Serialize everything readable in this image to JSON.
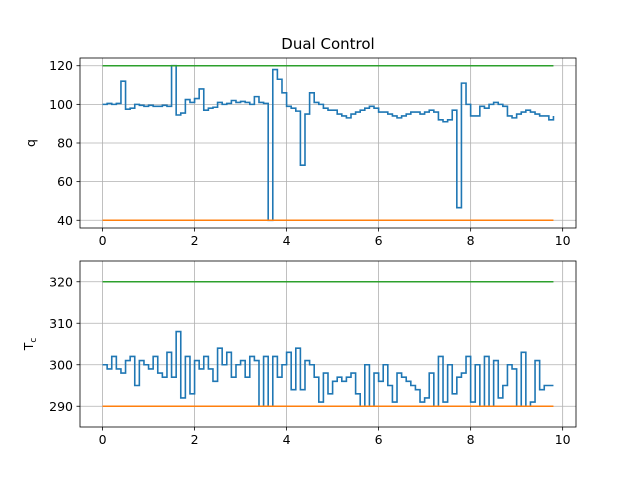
{
  "chart_data": [
    {
      "type": "line",
      "title": "Dual Control",
      "ylabel": "q",
      "xlabel": "",
      "xlim": [
        -0.49,
        10.29
      ],
      "ylim": [
        36,
        124
      ],
      "xticks": [
        0,
        2,
        4,
        6,
        8,
        10
      ],
      "yticks": [
        40,
        60,
        80,
        100,
        120
      ],
      "grid": true,
      "colors": {
        "signal": "#1f77b4",
        "upper": "#2ca02c",
        "lower": "#ff7f0e"
      },
      "series": [
        {
          "step": "post",
          "x": [
            0,
            0.1,
            0.2,
            0.3,
            0.4,
            0.5,
            0.6,
            0.7,
            0.8,
            0.9,
            1.0,
            1.1,
            1.2,
            1.3,
            1.4,
            1.5,
            1.6,
            1.7,
            1.8,
            1.9,
            2.0,
            2.1,
            2.2,
            2.3,
            2.4,
            2.5,
            2.6,
            2.7,
            2.8,
            2.9,
            3.0,
            3.1,
            3.2,
            3.3,
            3.4,
            3.5,
            3.6,
            3.7,
            3.8,
            3.9,
            4.0,
            4.1,
            4.2,
            4.3,
            4.4,
            4.5,
            4.6,
            4.7,
            4.8,
            4.9,
            5.0,
            5.1,
            5.2,
            5.3,
            5.4,
            5.5,
            5.6,
            5.7,
            5.8,
            5.9,
            6.0,
            6.1,
            6.2,
            6.3,
            6.4,
            6.5,
            6.6,
            6.7,
            6.8,
            6.9,
            7.0,
            7.1,
            7.2,
            7.3,
            7.4,
            7.5,
            7.6,
            7.7,
            7.8,
            7.9,
            8.0,
            8.1,
            8.2,
            8.3,
            8.4,
            8.5,
            8.6,
            8.7,
            8.8,
            8.9,
            9.0,
            9.1,
            9.2,
            9.3,
            9.4,
            9.5,
            9.6,
            9.7,
            9.8
          ],
          "y": [
            100,
            100.5,
            100,
            100.5,
            112,
            97.5,
            98,
            100,
            99.5,
            99,
            99.5,
            99,
            99,
            99.5,
            99,
            120,
            94.5,
            95.5,
            102.5,
            101,
            103,
            108,
            97,
            98,
            98.5,
            101,
            100,
            100.5,
            102,
            101,
            101.5,
            101,
            100,
            104,
            101,
            100.5,
            40,
            118,
            113,
            106,
            99,
            98,
            96.5,
            68.5,
            95,
            106,
            101,
            100,
            98,
            97,
            97,
            95,
            94,
            93,
            95,
            96,
            97,
            98,
            99,
            98,
            96,
            96,
            95,
            94,
            93,
            94,
            95,
            96,
            96,
            95,
            96,
            97,
            96,
            92,
            91,
            92,
            97,
            46.5,
            111,
            100,
            94,
            94,
            99,
            98,
            100,
            101,
            100,
            99,
            94,
            93,
            95,
            96,
            97,
            96,
            95,
            94,
            94,
            92,
            94
          ]
        },
        {
          "name": "",
          "x": [
            0,
            9.8
          ],
          "y": [
            120,
            120
          ]
        },
        {
          "name": "",
          "x": [
            0,
            9.8
          ],
          "y": [
            40,
            40
          ]
        }
      ]
    },
    {
      "type": "line",
      "title": "",
      "ylabel": "T_c",
      "xlabel": "",
      "xlim": [
        -0.49,
        10.29
      ],
      "ylim": [
        285,
        325
      ],
      "xticks": [
        0,
        2,
        4,
        6,
        8,
        10
      ],
      "yticks": [
        290,
        300,
        310,
        320
      ],
      "grid": true,
      "colors": {
        "signal": "#1f77b4",
        "upper": "#2ca02c",
        "lower": "#ff7f0e"
      },
      "series": [
        {
          "step": "post",
          "x": [
            0,
            0.1,
            0.2,
            0.3,
            0.4,
            0.5,
            0.6,
            0.7,
            0.8,
            0.9,
            1.0,
            1.1,
            1.2,
            1.3,
            1.4,
            1.5,
            1.6,
            1.7,
            1.8,
            1.9,
            2.0,
            2.1,
            2.2,
            2.3,
            2.4,
            2.5,
            2.6,
            2.7,
            2.8,
            2.9,
            3.0,
            3.1,
            3.2,
            3.3,
            3.4,
            3.5,
            3.6,
            3.7,
            3.8,
            3.9,
            4.0,
            4.1,
            4.2,
            4.3,
            4.4,
            4.5,
            4.6,
            4.7,
            4.8,
            4.9,
            5.0,
            5.1,
            5.2,
            5.3,
            5.4,
            5.5,
            5.6,
            5.7,
            5.8,
            5.9,
            6.0,
            6.1,
            6.2,
            6.3,
            6.4,
            6.5,
            6.6,
            6.7,
            6.8,
            6.9,
            7.0,
            7.1,
            7.2,
            7.3,
            7.4,
            7.5,
            7.6,
            7.7,
            7.8,
            7.9,
            8.0,
            8.1,
            8.2,
            8.3,
            8.4,
            8.5,
            8.6,
            8.7,
            8.8,
            8.9,
            9.0,
            9.1,
            9.2,
            9.3,
            9.4,
            9.5,
            9.6,
            9.7,
            9.8
          ],
          "y": [
            300,
            299,
            302,
            299,
            298,
            301,
            302,
            295,
            301,
            300,
            299,
            302,
            298,
            297,
            303,
            297,
            308,
            292,
            302,
            293,
            301,
            299,
            302,
            299,
            296,
            304,
            300,
            303,
            297,
            300,
            301,
            297,
            302,
            301,
            290,
            302,
            290,
            302,
            297,
            300,
            303,
            294,
            304,
            294,
            301,
            300,
            297,
            291,
            298,
            293,
            296,
            297,
            296,
            297,
            298,
            293,
            290,
            300,
            290,
            298,
            296,
            300,
            295,
            291,
            298,
            297,
            296,
            295,
            294,
            291,
            292,
            298,
            290,
            302,
            291,
            300,
            293,
            297,
            298,
            302,
            291,
            300,
            290,
            302,
            290,
            301,
            292,
            295,
            300,
            299,
            290,
            303,
            290,
            291,
            301,
            294,
            295,
            295,
            295
          ]
        },
        {
          "name": "",
          "x": [
            0,
            9.8
          ],
          "y": [
            320,
            320
          ]
        },
        {
          "name": "",
          "x": [
            0,
            9.8
          ],
          "y": [
            290,
            290
          ]
        }
      ]
    }
  ]
}
